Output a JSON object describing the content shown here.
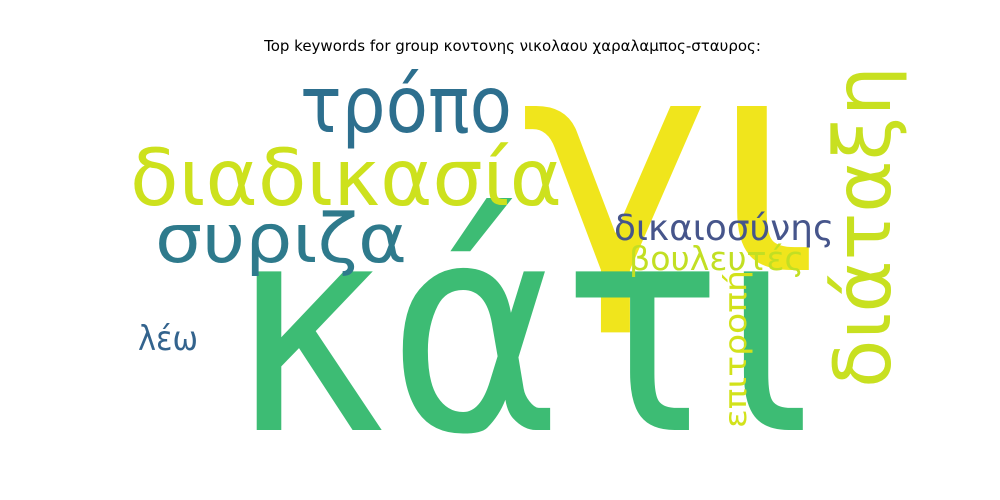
{
  "title": "Top keywords for group κοντονης νικολαου χαραλαμπος-σταυρος:",
  "words": [
    {
      "text": "κάτι",
      "color": "#3dbc74"
    },
    {
      "text": "γι",
      "color": "#f0e51c"
    },
    {
      "text": "διαδικασία",
      "color": "#cde11d"
    },
    {
      "text": "τρόπο",
      "color": "#2d6f8e"
    },
    {
      "text": "συριζα",
      "color": "#2e7a8c"
    },
    {
      "text": "διάταξη",
      "color": "#c8e020"
    },
    {
      "text": "δικαιοσύνης",
      "color": "#46558b"
    },
    {
      "text": "βουλευτές",
      "color": "#c2df23"
    },
    {
      "text": "επιτροπή",
      "color": "#d2e21b"
    },
    {
      "text": "λέω",
      "color": "#33638d"
    }
  ]
}
